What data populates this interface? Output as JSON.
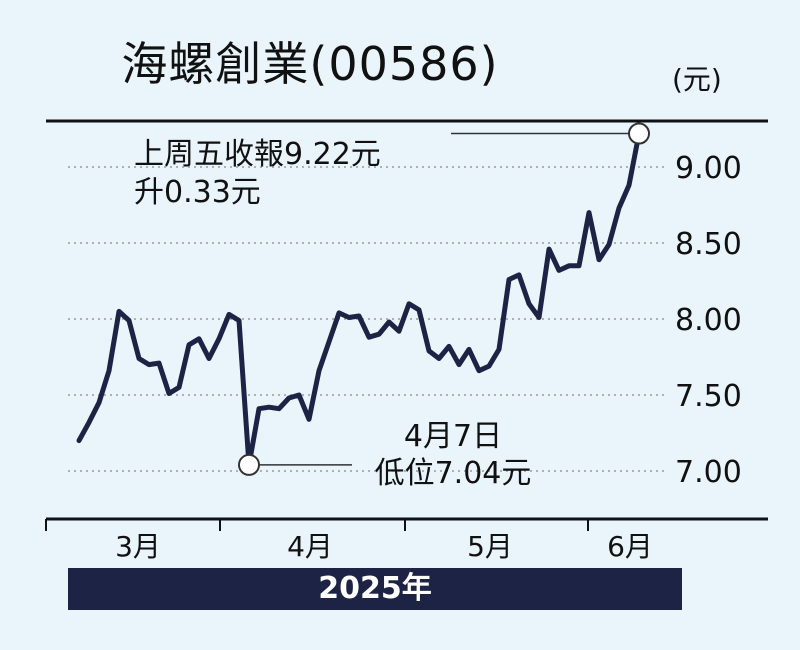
{
  "title": "海螺創業(00586)",
  "unit": "(元)",
  "year_label": "2025年",
  "annotations": {
    "latest_line1": "上周五收報9.22元",
    "latest_line2": "升0.33元",
    "low_line1": "4月7日",
    "low_line2": "低位7.04元"
  },
  "colors": {
    "background": "#e9f4fb",
    "line": "#1d2345",
    "year_bar": "#1d2345",
    "grid": "#9a9a9a"
  },
  "chart_data": {
    "type": "line",
    "title": "海螺創業(00586)",
    "xlabel": "2025年",
    "ylabel": "(元)",
    "x_tick_labels": [
      "3月",
      "4月",
      "5月",
      "6月"
    ],
    "y_ticks": [
      "7.00",
      "7.50",
      "8.00",
      "8.50",
      "9.00"
    ],
    "ylim": [
      6.7,
      9.35
    ],
    "grid": "horizontal dotted",
    "legend": "none",
    "series": [
      {
        "values": [
          7.2,
          7.32,
          7.45,
          7.66,
          8.05,
          7.99,
          7.74,
          7.7,
          7.71,
          7.51,
          7.55,
          7.83,
          7.87,
          7.74,
          7.87,
          8.03,
          7.99,
          7.04,
          7.41,
          7.42,
          7.41,
          7.48,
          7.5,
          7.34,
          7.66,
          7.85,
          8.04,
          8.01,
          8.02,
          7.88,
          7.9,
          7.98,
          7.92,
          8.1,
          8.06,
          7.79,
          7.74,
          7.82,
          7.7,
          7.8,
          7.66,
          7.69,
          7.8,
          8.26,
          8.29,
          8.1,
          8.01,
          8.46,
          8.32,
          8.35,
          8.35,
          8.7,
          8.39,
          8.49,
          8.73,
          8.88,
          9.22
        ],
        "markers": [
          {
            "index": 17,
            "value": 7.04,
            "label": "低位7.04元"
          },
          {
            "index": 56,
            "value": 9.22,
            "label": "上周五收報9.22元"
          }
        ]
      }
    ]
  }
}
